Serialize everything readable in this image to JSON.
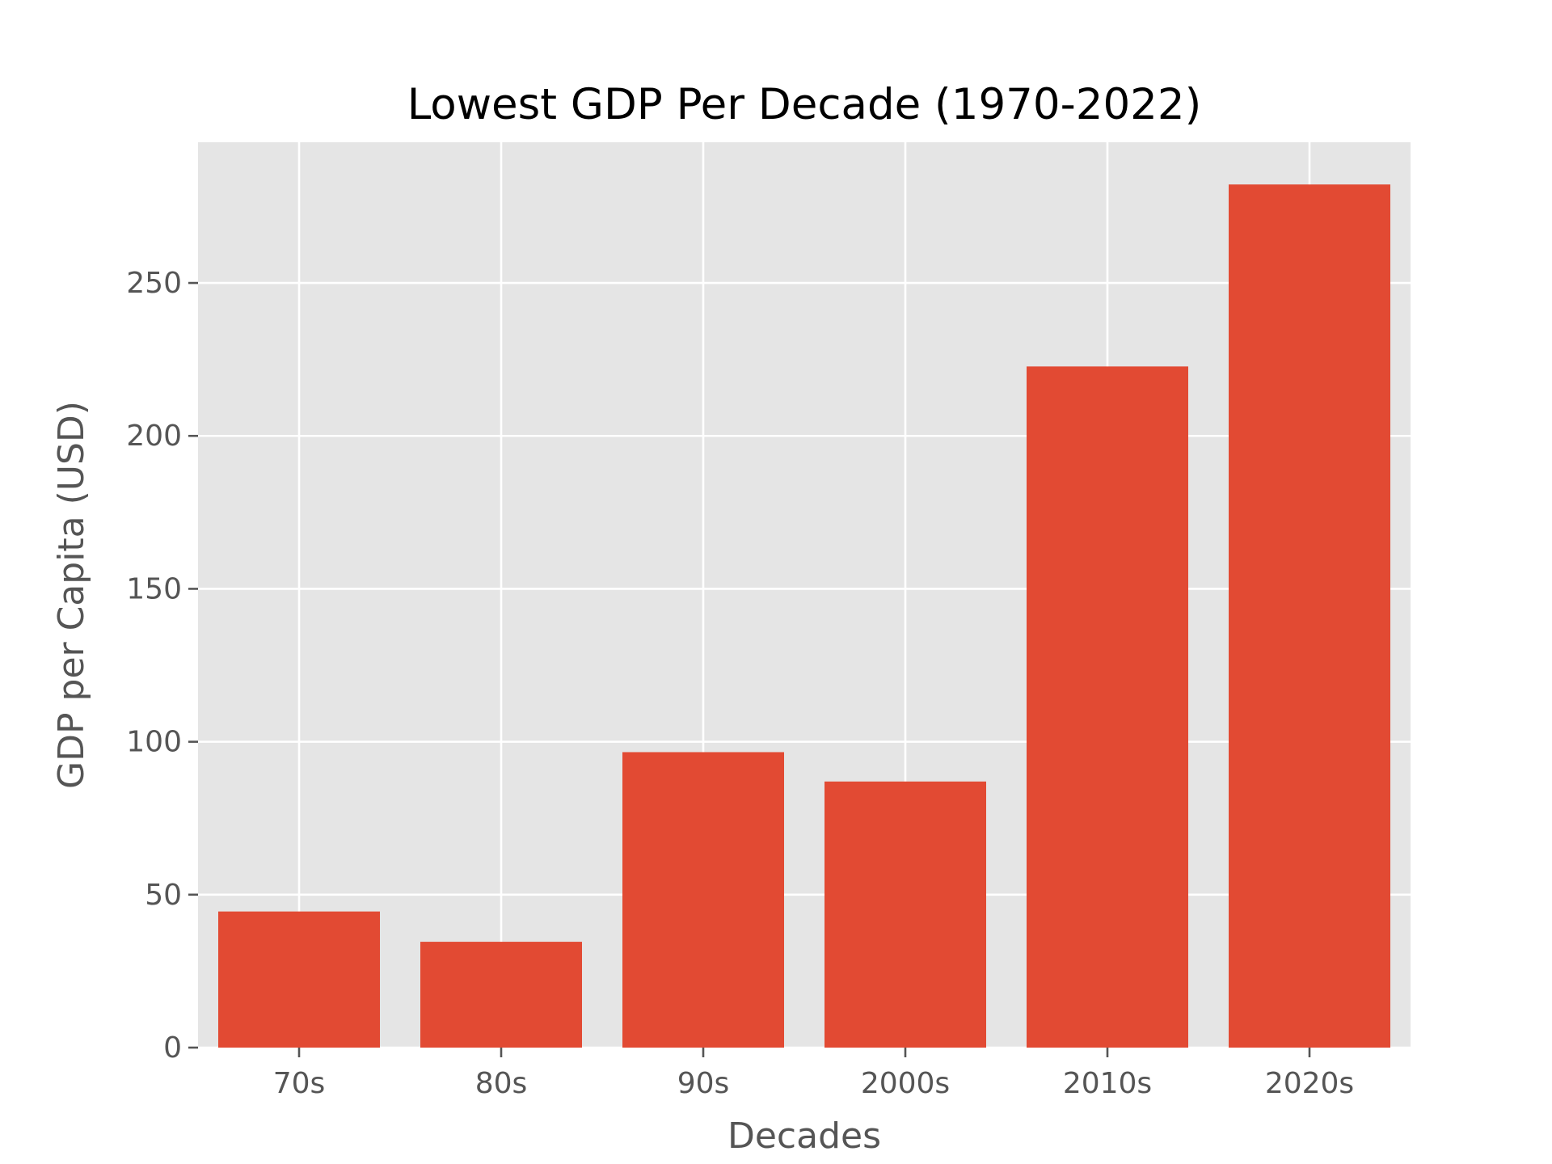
{
  "chart_data": {
    "type": "bar",
    "title": "Lowest GDP Per Decade (1970-2022)",
    "xlabel": "Decades",
    "ylabel": "GDP per Capita (USD)",
    "categories": [
      "70s",
      "80s",
      "90s",
      "2000s",
      "2010s",
      "2020s"
    ],
    "values": [
      44.5,
      34.6,
      96.6,
      87.0,
      222.7,
      282.2
    ],
    "ylim": [
      0,
      296
    ],
    "yticks": [
      0,
      50,
      100,
      150,
      200,
      250
    ],
    "grid": true,
    "legend": "none",
    "colors": {
      "bar": "#E24A33",
      "plot_background": "#E5E5E5",
      "grid": "#FFFFFF",
      "text": "#555555",
      "title": "#000000"
    }
  }
}
